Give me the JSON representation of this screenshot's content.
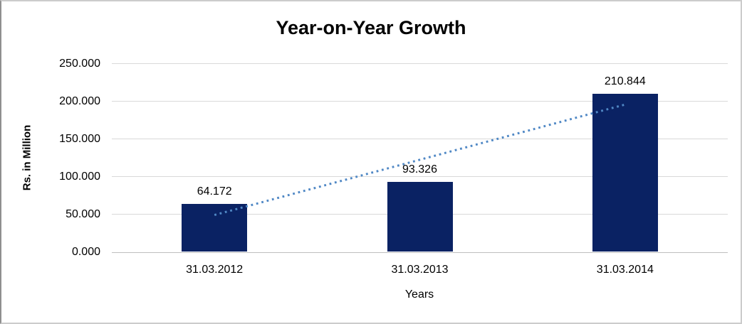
{
  "chart_data": {
    "type": "bar",
    "title": "Year-on-Year Growth",
    "categories": [
      "31.03.2012",
      "31.03.2013",
      "31.03.2014"
    ],
    "values": [
      64.172,
      93.326,
      210.844
    ],
    "value_labels": [
      "64.172",
      "93.326",
      "210.844"
    ],
    "xlabel": "Years",
    "ylabel": "Rs. in Million",
    "ylim": [
      0,
      250
    ],
    "yticks": [
      0,
      50,
      100,
      150,
      200,
      250
    ],
    "ytick_labels": [
      "0.000",
      "50.000",
      "100.000",
      "150.000",
      "200.000",
      "250.000"
    ],
    "grid": true,
    "legend": "none",
    "trendline": {
      "type": "linear",
      "style": "dotted"
    },
    "colors": {
      "bar": "#0a2263",
      "trendline": "#5088c5",
      "gridline": "#d9d9d9",
      "axis_line": "#bfbfbf",
      "text": "#000000"
    }
  }
}
